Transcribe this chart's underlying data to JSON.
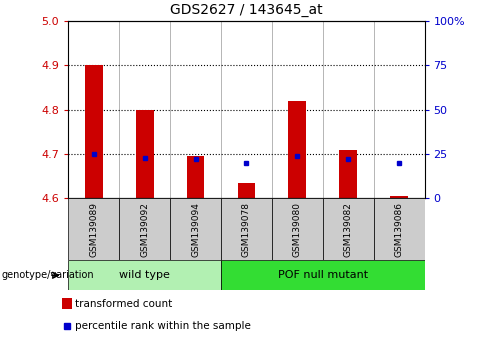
{
  "title": "GDS2627 / 143645_at",
  "samples": [
    "GSM139089",
    "GSM139092",
    "GSM139094",
    "GSM139078",
    "GSM139080",
    "GSM139082",
    "GSM139086"
  ],
  "red_values": [
    4.9,
    4.8,
    4.695,
    4.635,
    4.82,
    4.71,
    4.605
  ],
  "blue_percentiles": [
    25,
    23,
    22,
    20,
    24,
    22,
    20
  ],
  "y_min": 4.6,
  "y_max": 5.0,
  "y_ticks": [
    4.6,
    4.7,
    4.8,
    4.9,
    5.0
  ],
  "y_right_ticks": [
    0,
    25,
    50,
    75,
    100
  ],
  "y_right_labels": [
    "0",
    "25",
    "50",
    "75",
    "100%"
  ],
  "dotted_lines": [
    4.7,
    4.8,
    4.9
  ],
  "n_wild": 3,
  "n_pof": 4,
  "wild_type_label": "wild type",
  "pof_label": "POF null mutant",
  "bar_color": "#cc0000",
  "marker_color": "#0000cc",
  "bar_width": 0.35,
  "legend_red_label": "transformed count",
  "legend_blue_label": "percentile rank within the sample",
  "genotype_label": "genotype/variation",
  "wild_type_bg": "#b2f0b2",
  "pof_bg": "#33dd33",
  "tick_label_color_left": "#cc0000",
  "tick_label_color_right": "#0000cc",
  "gray_box": "#cccccc",
  "title_fontsize": 10
}
